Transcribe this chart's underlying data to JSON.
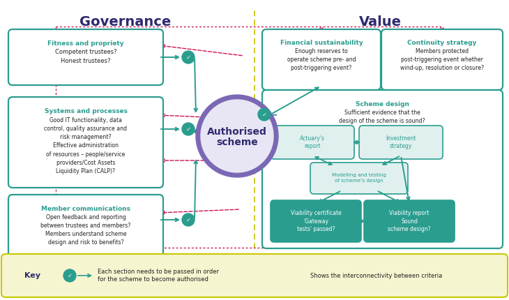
{
  "title_governance": "Governance",
  "title_value": "Value",
  "center_label": "Authorised\nscheme",
  "teal": "#2a9d8f",
  "purple": "#7b68b5",
  "purple_dark": "#2e2a6e",
  "pink": "#cc1155",
  "yellow_bg": "#f5f5d0",
  "yellow_border": "#c8c800",
  "light_teal_fill": "#dff0ee",
  "light_purple_fill": "#e8e6f5",
  "white": "#ffffff"
}
